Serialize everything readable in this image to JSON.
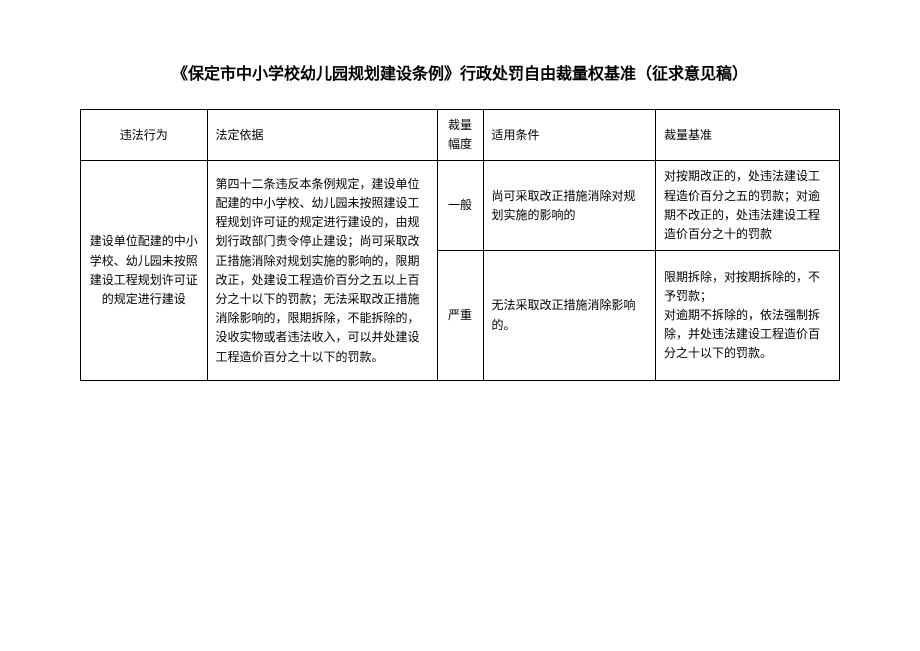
{
  "title": "《保定市中小学校幼儿园规划建设条例》行政处罚自由裁量权基准（征求意见稿）",
  "table": {
    "headers": {
      "col1": "违法行为",
      "col2": "法定依据",
      "col3": "裁量幅度",
      "col4": "适用条件",
      "col5": "裁量基准"
    },
    "rows": {
      "behavior": "建设单位配建的中小学校、幼儿园未按照建设工程规划许可证的规定进行建设",
      "basis": "第四十二条违反本条例规定，建设单位配建的中小学校、幼儿园未按照建设工程规划许可证的规定进行建设的，由规划行政部门责令停止建设；尚可采取改正措施消除对规划实施的影响的，限期改正，处建设工程造价百分之五以上百分之十以下的罚款；无法采取改正措施消除影响的，限期拆除，不能拆除的，没收实物或者违法收入，可以并处建设工程造价百分之十以下的罚款。",
      "level1": {
        "degree": "一般",
        "condition": "尚可采取改正措施消除对规划实施的影响的",
        "standard": "对按期改正的，处违法建设工程造价百分之五的罚款；对逾期不改正的，处违法建设工程造价百分之十的罚款"
      },
      "level2": {
        "degree": "严重",
        "condition": "无法采取改正措施消除影响的。",
        "standard": "限期拆除，对按期拆除的，不予罚款；\n对逾期不拆除的，依法强制拆除，并处违法建设工程造价百分之十以下的罚款。"
      }
    }
  }
}
